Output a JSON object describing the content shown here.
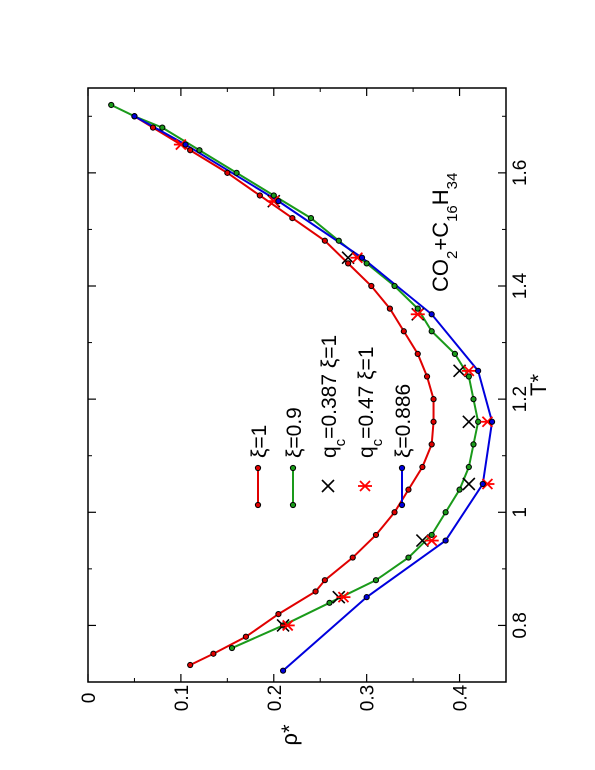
{
  "chart_data": {
    "type": "line",
    "rotation": "rotated 90 degrees counter-clockwise",
    "xlabel": "T*",
    "ylabel": "ρ*",
    "xlim": [
      0.7,
      1.75
    ],
    "ylim": [
      0,
      0.45
    ],
    "x_ticks": [
      0.8,
      1.0,
      1.2,
      1.4,
      1.6
    ],
    "x_tick_labels": [
      "0.8",
      "1",
      "1.2",
      "1.4",
      "1.6"
    ],
    "y_ticks": [
      0,
      0.1,
      0.2,
      0.3,
      0.4
    ],
    "y_tick_labels": [
      "0",
      "0.1",
      "0.2",
      "0.3",
      "0.4"
    ],
    "grid": false,
    "legend_position": "center",
    "annotation": {
      "parts": [
        {
          "t": "CO",
          "sub": false
        },
        {
          "t": "2",
          "sub": true
        },
        {
          "t": "+C",
          "sub": false
        },
        {
          "t": "16",
          "sub": true
        },
        {
          "t": "H",
          "sub": false
        },
        {
          "t": "34",
          "sub": true
        }
      ]
    },
    "series": [
      {
        "legend": {
          "parts": [
            {
              "t": "ξ=1",
              "sub": false
            }
          ]
        },
        "color": "#e00000",
        "marker": "circle",
        "line": true,
        "x": [
          0.73,
          0.75,
          0.78,
          0.82,
          0.86,
          0.88,
          0.92,
          0.96,
          1.0,
          1.04,
          1.08,
          1.12,
          1.16,
          1.2,
          1.24,
          1.28,
          1.32,
          1.36,
          1.4,
          1.44,
          1.48,
          1.52,
          1.56,
          1.6,
          1.64,
          1.68,
          1.7
        ],
        "y": [
          0.11,
          0.135,
          0.17,
          0.205,
          0.245,
          0.255,
          0.285,
          0.31,
          0.33,
          0.345,
          0.36,
          0.37,
          0.372,
          0.372,
          0.365,
          0.355,
          0.34,
          0.325,
          0.305,
          0.28,
          0.255,
          0.22,
          0.185,
          0.15,
          0.11,
          0.07,
          0.05
        ]
      },
      {
        "legend": {
          "parts": [
            {
              "t": "ξ=0.9",
              "sub": false
            }
          ]
        },
        "color": "#1a9a1a",
        "marker": "circle",
        "line": true,
        "x": [
          0.76,
          0.8,
          0.84,
          0.88,
          0.92,
          0.96,
          1.0,
          1.04,
          1.08,
          1.12,
          1.16,
          1.2,
          1.24,
          1.28,
          1.32,
          1.36,
          1.4,
          1.44,
          1.48,
          1.52,
          1.56,
          1.6,
          1.64,
          1.68,
          1.7,
          1.72
        ],
        "y": [
          0.155,
          0.21,
          0.26,
          0.31,
          0.345,
          0.37,
          0.385,
          0.4,
          0.41,
          0.415,
          0.42,
          0.415,
          0.41,
          0.395,
          0.37,
          0.355,
          0.33,
          0.3,
          0.27,
          0.24,
          0.2,
          0.16,
          0.12,
          0.08,
          0.05,
          0.025
        ]
      },
      {
        "legend": {
          "parts": [
            {
              "t": "q",
              "sub": false
            },
            {
              "t": "c",
              "sub": true
            },
            {
              "t": "=0.387 ξ=1",
              "sub": false
            }
          ]
        },
        "color": "#000000",
        "marker": "x",
        "line": false,
        "x": [
          0.8,
          0.85,
          0.95,
          1.05,
          1.16,
          1.25,
          1.35,
          1.45,
          1.55
        ],
        "y": [
          0.21,
          0.27,
          0.36,
          0.41,
          0.41,
          0.4,
          0.355,
          0.28,
          0.2
        ]
      },
      {
        "legend": {
          "parts": [
            {
              "t": "q",
              "sub": false
            },
            {
              "t": "c",
              "sub": true
            },
            {
              "t": "=0.47 ξ=1",
              "sub": false
            }
          ]
        },
        "color": "#ff0000",
        "marker": "asterisk",
        "line": false,
        "x": [
          0.8,
          0.85,
          0.95,
          1.05,
          1.16,
          1.25,
          1.35,
          1.45,
          1.55,
          1.65
        ],
        "y": [
          0.215,
          0.275,
          0.37,
          0.43,
          0.43,
          0.41,
          0.355,
          0.29,
          0.2,
          0.1
        ]
      },
      {
        "legend": {
          "parts": [
            {
              "t": "ξ=0.886",
              "sub": false
            }
          ]
        },
        "color": "#0000dd",
        "marker": "circle",
        "line": true,
        "x": [
          0.72,
          0.85,
          0.95,
          1.05,
          1.16,
          1.25,
          1.35,
          1.45,
          1.55,
          1.65,
          1.7
        ],
        "y": [
          0.21,
          0.3,
          0.385,
          0.425,
          0.435,
          0.42,
          0.37,
          0.295,
          0.205,
          0.105,
          0.05
        ]
      }
    ]
  }
}
